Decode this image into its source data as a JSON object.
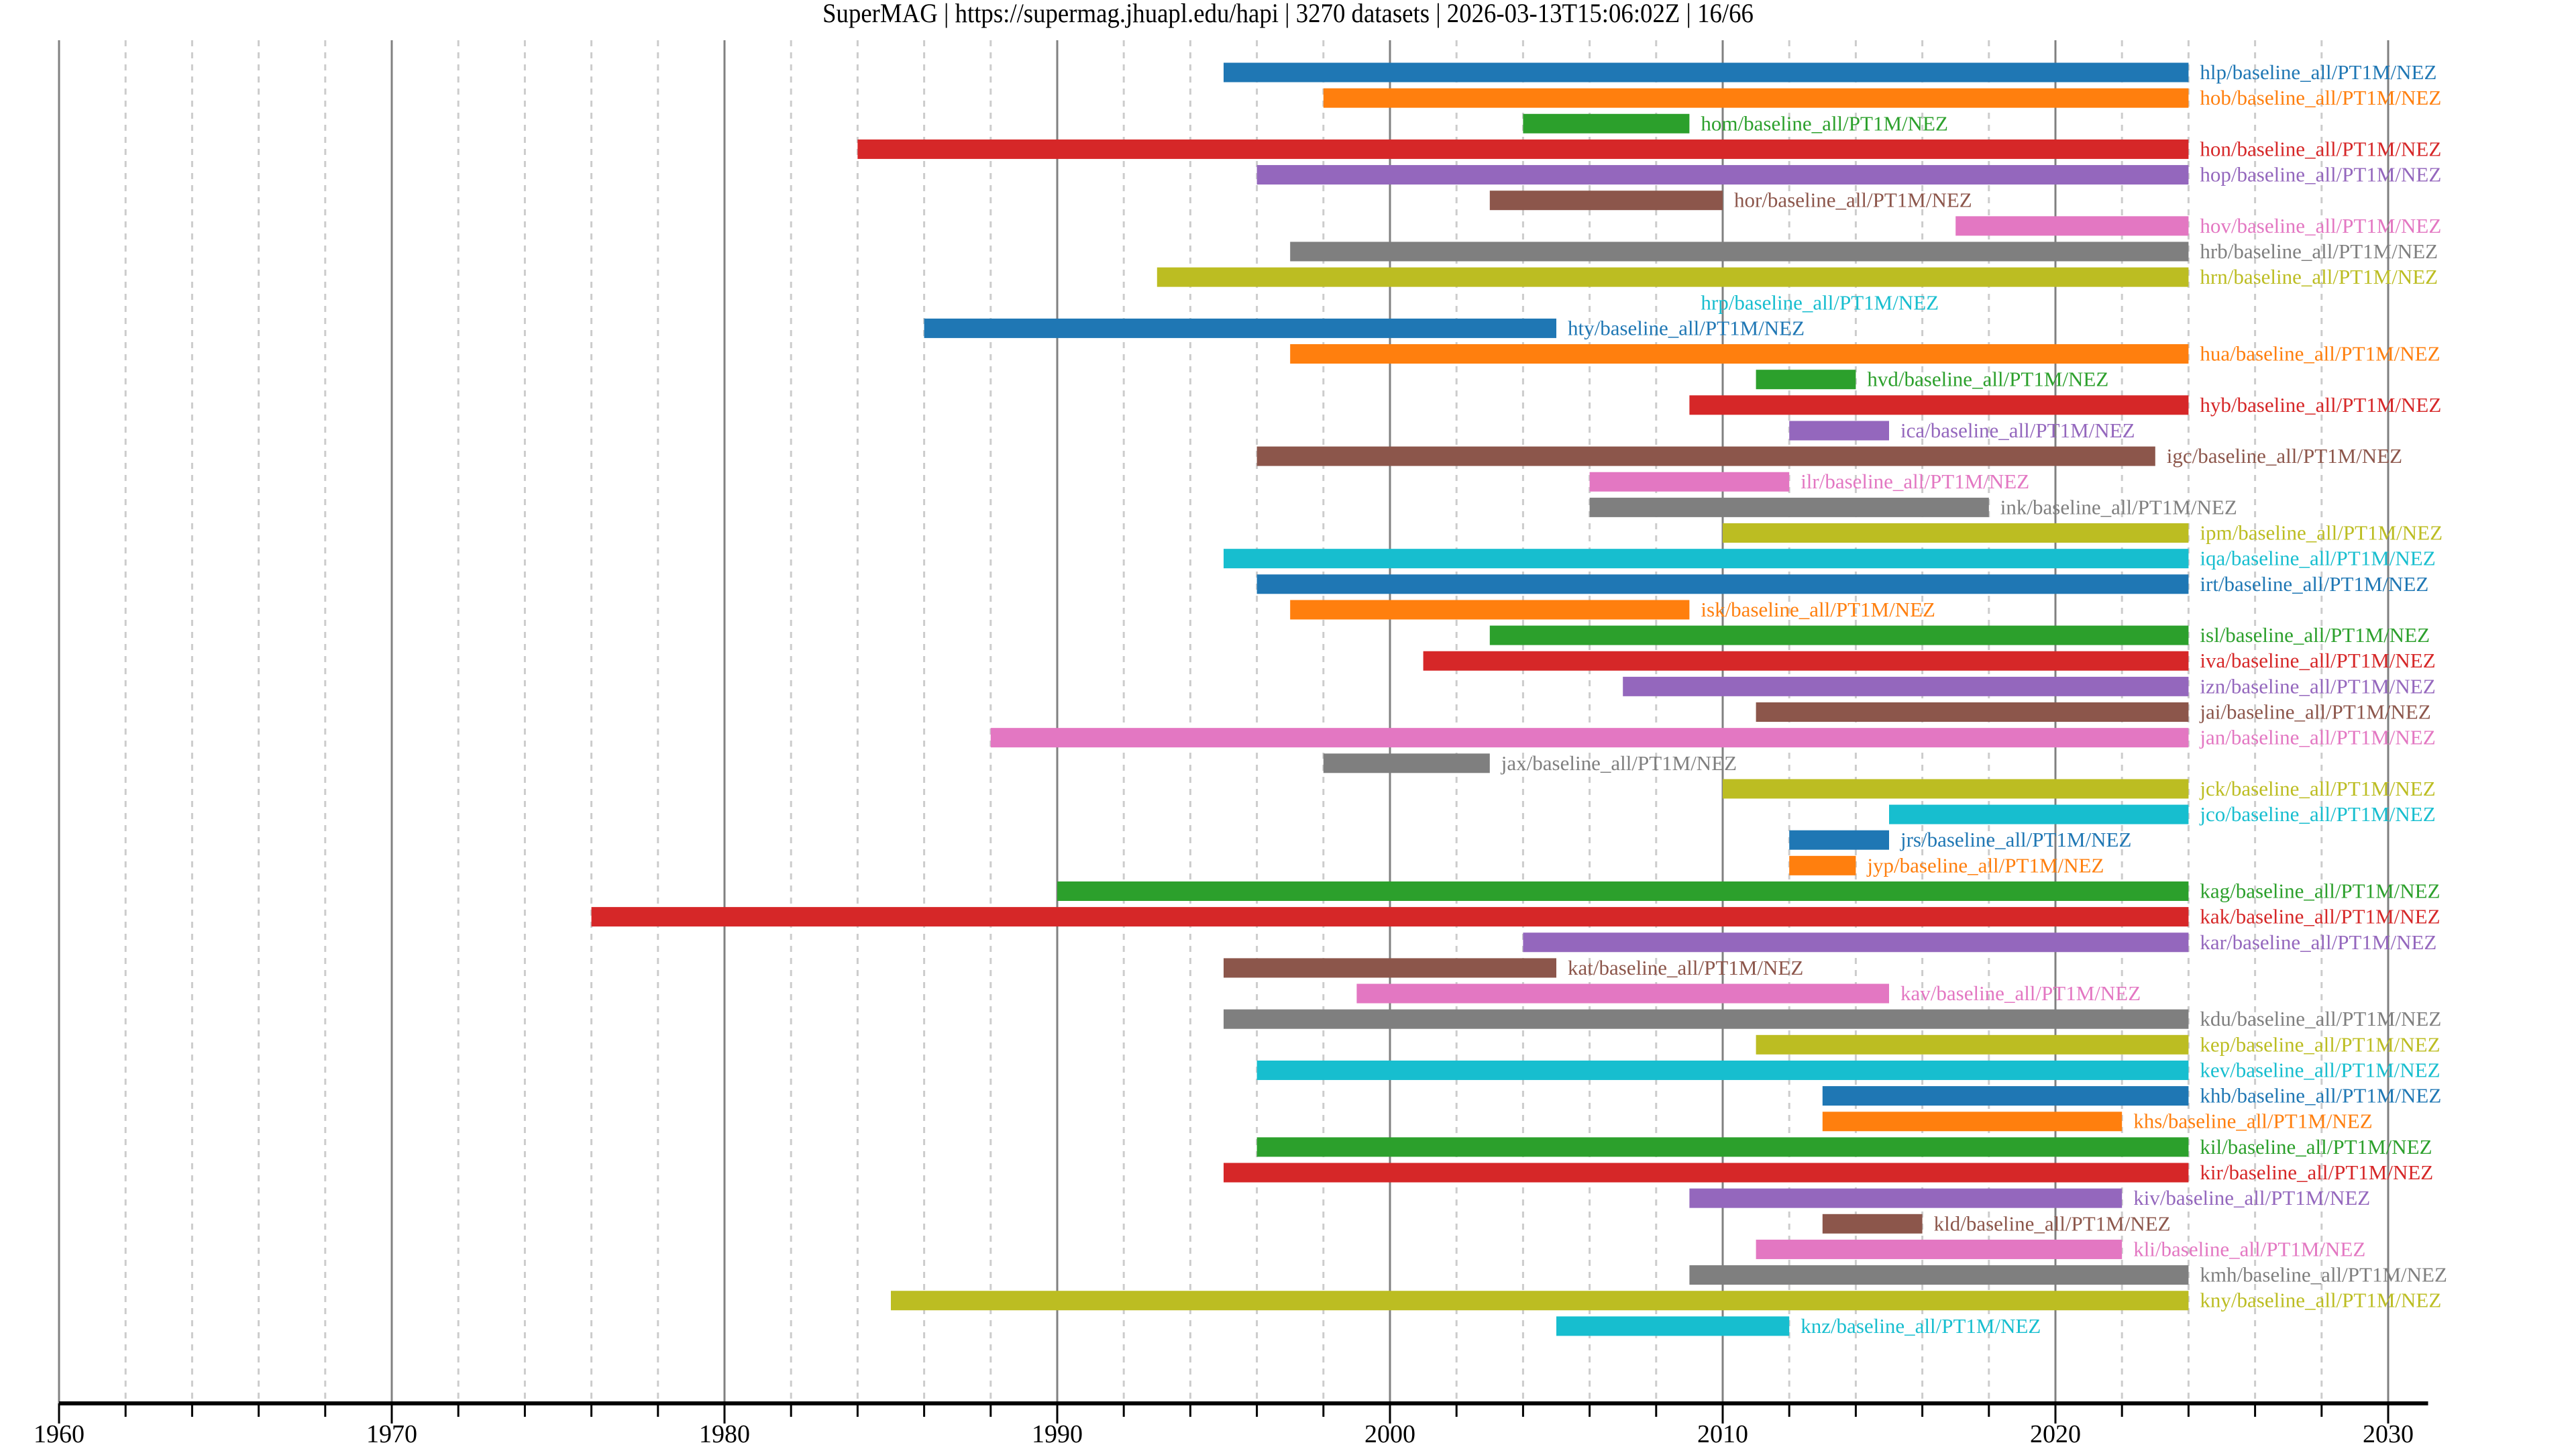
{
  "chart_data": {
    "type": "timeline",
    "title": "SuperMAG | https://supermag.jhuapl.edu/hapi | 3270 datasets | 2026-03-13T15:06:02Z | 16/66",
    "xlabel": "",
    "ylabel": "",
    "xlim": [
      1960,
      2031.2
    ],
    "xticks": [
      "1960",
      "1970",
      "1980",
      "1990",
      "2000",
      "2010",
      "2020",
      "2030"
    ],
    "minor_tick_step_years": 2,
    "grid": true,
    "palette": [
      "#1f77b4",
      "#ff7f0e",
      "#2ca02c",
      "#d62728",
      "#9467bd",
      "#8c564b",
      "#e377c2",
      "#7f7f7f",
      "#bcbd22",
      "#17becf"
    ],
    "series": [
      {
        "name": "hlp/baseline_all/PT1M/NEZ",
        "start": 1995,
        "end": 2024
      },
      {
        "name": "hob/baseline_all/PT1M/NEZ",
        "start": 1998,
        "end": 2024
      },
      {
        "name": "hom/baseline_all/PT1M/NEZ",
        "start": 2004,
        "end": 2009
      },
      {
        "name": "hon/baseline_all/PT1M/NEZ",
        "start": 1984,
        "end": 2024
      },
      {
        "name": "hop/baseline_all/PT1M/NEZ",
        "start": 1996,
        "end": 2024
      },
      {
        "name": "hor/baseline_all/PT1M/NEZ",
        "start": 2003,
        "end": 2010
      },
      {
        "name": "hov/baseline_all/PT1M/NEZ",
        "start": 2017,
        "end": 2024
      },
      {
        "name": "hrb/baseline_all/PT1M/NEZ",
        "start": 1997,
        "end": 2024
      },
      {
        "name": "hrn/baseline_all/PT1M/NEZ",
        "start": 1993,
        "end": 2024
      },
      {
        "name": "hrp/baseline_all/PT1M/NEZ",
        "start": 2009,
        "end": 2009
      },
      {
        "name": "hty/baseline_all/PT1M/NEZ",
        "start": 1986,
        "end": 2005
      },
      {
        "name": "hua/baseline_all/PT1M/NEZ",
        "start": 1997,
        "end": 2024
      },
      {
        "name": "hvd/baseline_all/PT1M/NEZ",
        "start": 2011,
        "end": 2014
      },
      {
        "name": "hyb/baseline_all/PT1M/NEZ",
        "start": 2009,
        "end": 2024
      },
      {
        "name": "ica/baseline_all/PT1M/NEZ",
        "start": 2012,
        "end": 2015
      },
      {
        "name": "igc/baseline_all/PT1M/NEZ",
        "start": 1996,
        "end": 2023
      },
      {
        "name": "ilr/baseline_all/PT1M/NEZ",
        "start": 2006,
        "end": 2012
      },
      {
        "name": "ink/baseline_all/PT1M/NEZ",
        "start": 2006,
        "end": 2018
      },
      {
        "name": "ipm/baseline_all/PT1M/NEZ",
        "start": 2010,
        "end": 2024
      },
      {
        "name": "iqa/baseline_all/PT1M/NEZ",
        "start": 1995,
        "end": 2024
      },
      {
        "name": "irt/baseline_all/PT1M/NEZ",
        "start": 1996,
        "end": 2024
      },
      {
        "name": "isk/baseline_all/PT1M/NEZ",
        "start": 1997,
        "end": 2009
      },
      {
        "name": "isl/baseline_all/PT1M/NEZ",
        "start": 2003,
        "end": 2024
      },
      {
        "name": "iva/baseline_all/PT1M/NEZ",
        "start": 2001,
        "end": 2024
      },
      {
        "name": "izn/baseline_all/PT1M/NEZ",
        "start": 2007,
        "end": 2024
      },
      {
        "name": "jai/baseline_all/PT1M/NEZ",
        "start": 2011,
        "end": 2024
      },
      {
        "name": "jan/baseline_all/PT1M/NEZ",
        "start": 1988,
        "end": 2024
      },
      {
        "name": "jax/baseline_all/PT1M/NEZ",
        "start": 1998,
        "end": 2003
      },
      {
        "name": "jck/baseline_all/PT1M/NEZ",
        "start": 2010,
        "end": 2024
      },
      {
        "name": "jco/baseline_all/PT1M/NEZ",
        "start": 2015,
        "end": 2024
      },
      {
        "name": "jrs/baseline_all/PT1M/NEZ",
        "start": 2012,
        "end": 2015
      },
      {
        "name": "jyp/baseline_all/PT1M/NEZ",
        "start": 2012,
        "end": 2014
      },
      {
        "name": "kag/baseline_all/PT1M/NEZ",
        "start": 1990,
        "end": 2024
      },
      {
        "name": "kak/baseline_all/PT1M/NEZ",
        "start": 1976,
        "end": 2024
      },
      {
        "name": "kar/baseline_all/PT1M/NEZ",
        "start": 2004,
        "end": 2024
      },
      {
        "name": "kat/baseline_all/PT1M/NEZ",
        "start": 1995,
        "end": 2005
      },
      {
        "name": "kav/baseline_all/PT1M/NEZ",
        "start": 1999,
        "end": 2015
      },
      {
        "name": "kdu/baseline_all/PT1M/NEZ",
        "start": 1995,
        "end": 2024
      },
      {
        "name": "kep/baseline_all/PT1M/NEZ",
        "start": 2011,
        "end": 2024
      },
      {
        "name": "kev/baseline_all/PT1M/NEZ",
        "start": 1996,
        "end": 2024
      },
      {
        "name": "khb/baseline_all/PT1M/NEZ",
        "start": 2013,
        "end": 2024
      },
      {
        "name": "khs/baseline_all/PT1M/NEZ",
        "start": 2013,
        "end": 2022
      },
      {
        "name": "kil/baseline_all/PT1M/NEZ",
        "start": 1996,
        "end": 2024
      },
      {
        "name": "kir/baseline_all/PT1M/NEZ",
        "start": 1995,
        "end": 2024
      },
      {
        "name": "kiv/baseline_all/PT1M/NEZ",
        "start": 2009,
        "end": 2022
      },
      {
        "name": "kld/baseline_all/PT1M/NEZ",
        "start": 2013,
        "end": 2016
      },
      {
        "name": "kli/baseline_all/PT1M/NEZ",
        "start": 2011,
        "end": 2022
      },
      {
        "name": "kmh/baseline_all/PT1M/NEZ",
        "start": 2009,
        "end": 2024
      },
      {
        "name": "kny/baseline_all/PT1M/NEZ",
        "start": 1985,
        "end": 2024
      },
      {
        "name": "knz/baseline_all/PT1M/NEZ",
        "start": 2005,
        "end": 2012
      }
    ]
  }
}
